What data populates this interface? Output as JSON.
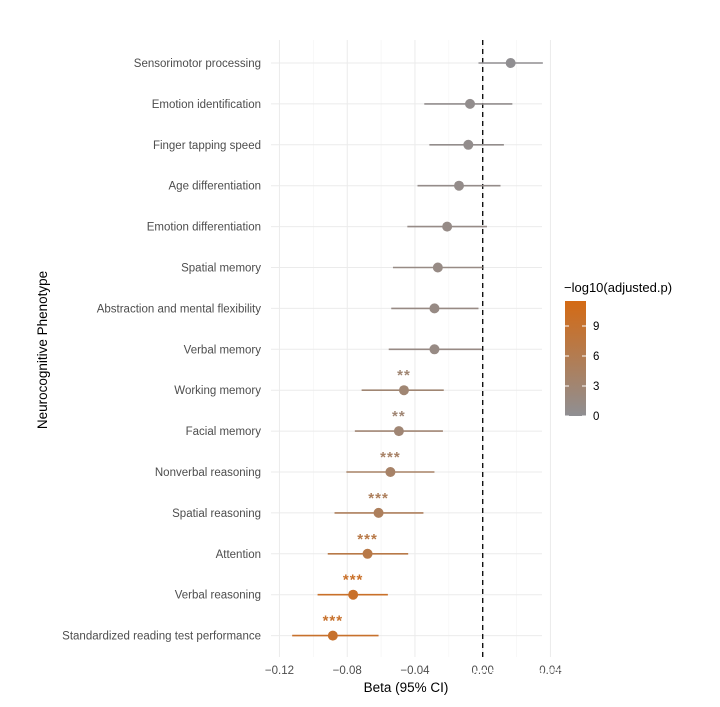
{
  "chart_data": {
    "type": "scatter",
    "subtype": "forest-plot",
    "xlabel": "Beta (95% CI)",
    "ylabel": "Neurocognitive Phenotype",
    "xlim": [
      -0.125,
      0.035
    ],
    "x_ticks": [
      {
        "value": -0.12,
        "label": "−0.12"
      },
      {
        "value": -0.08,
        "label": "−0.08"
      },
      {
        "value": -0.04,
        "label": "−0.04"
      },
      {
        "value": 0.0,
        "label": "0.00"
      },
      {
        "value": 0.04,
        "label": "0.04"
      }
    ],
    "reference_line": 0,
    "grid": true,
    "legend": {
      "title": "−log10(adjusted.p)",
      "placement": "right",
      "range": [
        0,
        11.5
      ],
      "ticks": [
        {
          "value": 9,
          "label": "9"
        },
        {
          "value": 6,
          "label": "6"
        },
        {
          "value": 3,
          "label": "3"
        },
        {
          "value": 0,
          "label": "0"
        }
      ],
      "color_low": "#8f8f93",
      "color_high": "#d46a14"
    },
    "rows": [
      {
        "label": "Sensorimotor processing",
        "beta": 0.0165,
        "low": -0.0025,
        "high": 0.0355,
        "p": 0.2,
        "stars": ""
      },
      {
        "label": "Emotion identification",
        "beta": -0.0075,
        "low": -0.0345,
        "high": 0.0175,
        "p": 0.5,
        "stars": ""
      },
      {
        "label": "Finger tapping speed",
        "beta": -0.0085,
        "low": -0.0315,
        "high": 0.0125,
        "p": 0.6,
        "stars": ""
      },
      {
        "label": "Age differentiation",
        "beta": -0.014,
        "low": -0.0385,
        "high": 0.0105,
        "p": 0.8,
        "stars": ""
      },
      {
        "label": "Emotion differentiation",
        "beta": -0.021,
        "low": -0.0445,
        "high": 0.0025,
        "p": 1.1,
        "stars": ""
      },
      {
        "label": "Spatial memory",
        "beta": -0.0265,
        "low": -0.053,
        "high": 0.0,
        "p": 1.3,
        "stars": ""
      },
      {
        "label": "Abstraction and mental flexibility",
        "beta": -0.0285,
        "low": -0.054,
        "high": -0.0025,
        "p": 1.4,
        "stars": ""
      },
      {
        "label": "Verbal memory",
        "beta": -0.0285,
        "low": -0.0555,
        "high": -0.0005,
        "p": 1.4,
        "stars": ""
      },
      {
        "label": "Working memory",
        "beta": -0.0465,
        "low": -0.0715,
        "high": -0.023,
        "p": 2.9,
        "stars": "**"
      },
      {
        "label": "Facial memory",
        "beta": -0.0495,
        "low": -0.0755,
        "high": -0.0235,
        "p": 2.8,
        "stars": "**"
      },
      {
        "label": "Nonverbal reasoning",
        "beta": -0.0545,
        "low": -0.0805,
        "high": -0.0285,
        "p": 4.0,
        "stars": "***"
      },
      {
        "label": "Spatial reasoning",
        "beta": -0.0615,
        "low": -0.0875,
        "high": -0.035,
        "p": 5.0,
        "stars": "***"
      },
      {
        "label": "Attention",
        "beta": -0.068,
        "low": -0.0915,
        "high": -0.044,
        "p": 6.8,
        "stars": "***"
      },
      {
        "label": "Verbal reasoning",
        "beta": -0.0765,
        "low": -0.0975,
        "high": -0.056,
        "p": 9.6,
        "stars": "***"
      },
      {
        "label": "Standardized reading test performance",
        "beta": -0.0885,
        "low": -0.1125,
        "high": -0.0615,
        "p": 9.3,
        "stars": "***"
      }
    ]
  },
  "watermark": "知乎 @涛哥聊多动ADHD"
}
